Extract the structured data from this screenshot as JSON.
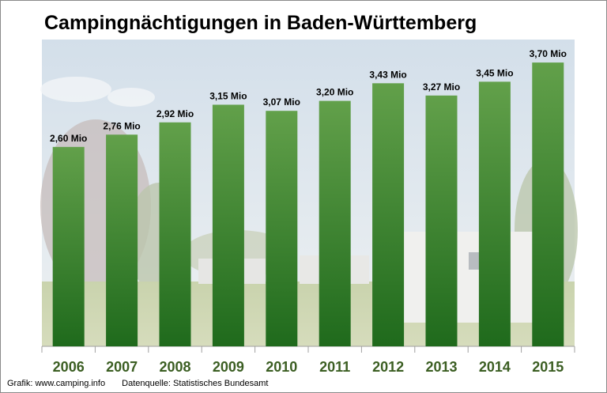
{
  "title": "Campingnächtigungen in Baden-Württemberg",
  "footer": {
    "credit": "Grafik: www.camping.info",
    "source": "Datenquelle:  Statistisches Bundesamt"
  },
  "colors": {
    "bar_top": "#62a04a",
    "bar_bottom": "#1f6a1c",
    "year_label": "#3b5e22"
  },
  "chart_data": {
    "type": "bar",
    "title": "Campingnächtigungen in Baden-Württemberg",
    "categories": [
      "2006",
      "2007",
      "2008",
      "2009",
      "2010",
      "2011",
      "2012",
      "2013",
      "2014",
      "2015"
    ],
    "values": [
      2.6,
      2.76,
      2.92,
      3.15,
      3.07,
      3.2,
      3.43,
      3.27,
      3.45,
      3.7
    ],
    "data_labels": [
      "2,60 Mio",
      "2,76 Mio",
      "2,92 Mio",
      "3,15 Mio",
      "3,07 Mio",
      "3,20 Mio",
      "3,43 Mio",
      "3,27 Mio",
      "3,45 Mio",
      "3,70 Mio"
    ],
    "unit": "Mio",
    "xlabel": "",
    "ylabel": "",
    "ylim": [
      0,
      4
    ],
    "grid": false,
    "legend": "none"
  }
}
